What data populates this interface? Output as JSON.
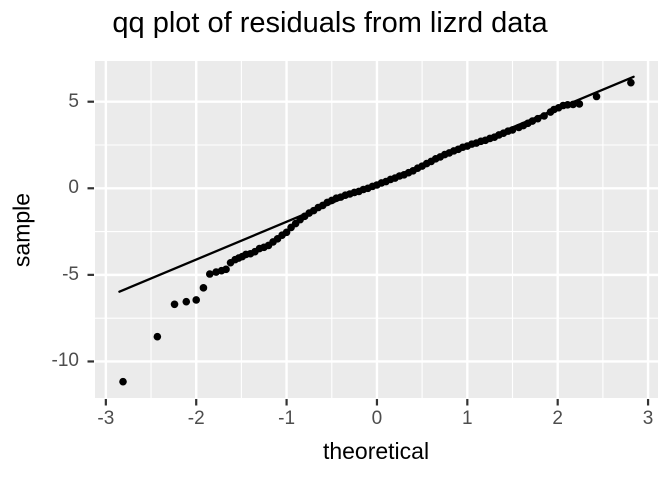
{
  "chart_data": {
    "type": "scatter",
    "title": "qq plot of residuals from lizrd data",
    "xlabel": "theoretical",
    "ylabel": "sample",
    "xlim": [
      -3.12,
      3.11
    ],
    "ylim": [
      -12.11,
      7.35
    ],
    "x_ticks": [
      -3,
      -2,
      -1,
      0,
      1,
      2,
      3
    ],
    "y_ticks": [
      5,
      0,
      -5,
      -10
    ],
    "x_minor": [
      -2.5,
      -1.5,
      -0.5,
      0.5,
      1.5,
      2.5
    ],
    "y_minor": [
      2.5,
      -2.5,
      -7.5
    ],
    "grid": true,
    "legend_position": "none",
    "panel_bg": "#EBEBEB",
    "grid_major_color": "#FFFFFF",
    "grid_minor_color": "#FFFFFF",
    "tick_mark_color": "#333333",
    "tick_label_color": "#4D4D4D",
    "point_color": "#000000",
    "line_color": "#000000",
    "qq_line": {
      "x1": -2.85,
      "y1": -5.97,
      "x2": 2.84,
      "y2": 6.44
    },
    "points": [
      [
        -2.81,
        -11.17
      ],
      [
        -2.43,
        -8.57
      ],
      [
        -2.24,
        -6.7
      ],
      [
        -2.11,
        -6.55
      ],
      [
        -2.0,
        -6.45
      ],
      [
        -1.92,
        -5.75
      ],
      [
        -1.85,
        -4.95
      ],
      [
        -1.78,
        -4.84
      ],
      [
        -1.72,
        -4.76
      ],
      [
        -1.67,
        -4.68
      ],
      [
        -1.62,
        -4.3
      ],
      [
        -1.57,
        -4.12
      ],
      [
        -1.53,
        -4.03
      ],
      [
        -1.49,
        -3.94
      ],
      [
        -1.45,
        -3.82
      ],
      [
        -1.4,
        -3.78
      ],
      [
        -1.35,
        -3.66
      ],
      [
        -1.3,
        -3.48
      ],
      [
        -1.25,
        -3.41
      ],
      [
        -1.2,
        -3.3
      ],
      [
        -1.15,
        -3.1
      ],
      [
        -1.1,
        -2.92
      ],
      [
        -1.05,
        -2.71
      ],
      [
        -1.0,
        -2.54
      ],
      [
        -0.95,
        -2.26
      ],
      [
        -0.9,
        -2.04
      ],
      [
        -0.85,
        -1.81
      ],
      [
        -0.8,
        -1.62
      ],
      [
        -0.75,
        -1.43
      ],
      [
        -0.7,
        -1.29
      ],
      [
        -0.65,
        -1.11
      ],
      [
        -0.6,
        -0.99
      ],
      [
        -0.55,
        -0.82
      ],
      [
        -0.5,
        -0.7
      ],
      [
        -0.45,
        -0.57
      ],
      [
        -0.4,
        -0.51
      ],
      [
        -0.35,
        -0.4
      ],
      [
        -0.3,
        -0.33
      ],
      [
        -0.25,
        -0.24
      ],
      [
        -0.2,
        -0.18
      ],
      [
        -0.15,
        -0.07
      ],
      [
        -0.1,
        0.0
      ],
      [
        -0.05,
        0.11
      ],
      [
        0.0,
        0.19
      ],
      [
        0.05,
        0.31
      ],
      [
        0.1,
        0.39
      ],
      [
        0.15,
        0.51
      ],
      [
        0.2,
        0.59
      ],
      [
        0.25,
        0.71
      ],
      [
        0.3,
        0.78
      ],
      [
        0.35,
        0.9
      ],
      [
        0.4,
        1.01
      ],
      [
        0.45,
        1.16
      ],
      [
        0.5,
        1.28
      ],
      [
        0.55,
        1.43
      ],
      [
        0.6,
        1.55
      ],
      [
        0.65,
        1.7
      ],
      [
        0.7,
        1.81
      ],
      [
        0.75,
        1.95
      ],
      [
        0.8,
        2.04
      ],
      [
        0.85,
        2.16
      ],
      [
        0.9,
        2.25
      ],
      [
        0.95,
        2.37
      ],
      [
        1.0,
        2.44
      ],
      [
        1.05,
        2.55
      ],
      [
        1.1,
        2.61
      ],
      [
        1.15,
        2.71
      ],
      [
        1.2,
        2.77
      ],
      [
        1.25,
        2.88
      ],
      [
        1.3,
        2.95
      ],
      [
        1.35,
        3.08
      ],
      [
        1.4,
        3.18
      ],
      [
        1.45,
        3.3
      ],
      [
        1.5,
        3.37
      ],
      [
        1.57,
        3.51
      ],
      [
        1.62,
        3.62
      ],
      [
        1.67,
        3.75
      ],
      [
        1.72,
        3.88
      ],
      [
        1.78,
        4.02
      ],
      [
        1.85,
        4.18
      ],
      [
        1.92,
        4.4
      ],
      [
        1.96,
        4.55
      ],
      [
        2.01,
        4.65
      ],
      [
        2.06,
        4.78
      ],
      [
        2.11,
        4.82
      ],
      [
        2.17,
        4.84
      ],
      [
        2.24,
        4.87
      ],
      [
        2.43,
        5.3
      ],
      [
        2.81,
        6.1
      ]
    ]
  }
}
